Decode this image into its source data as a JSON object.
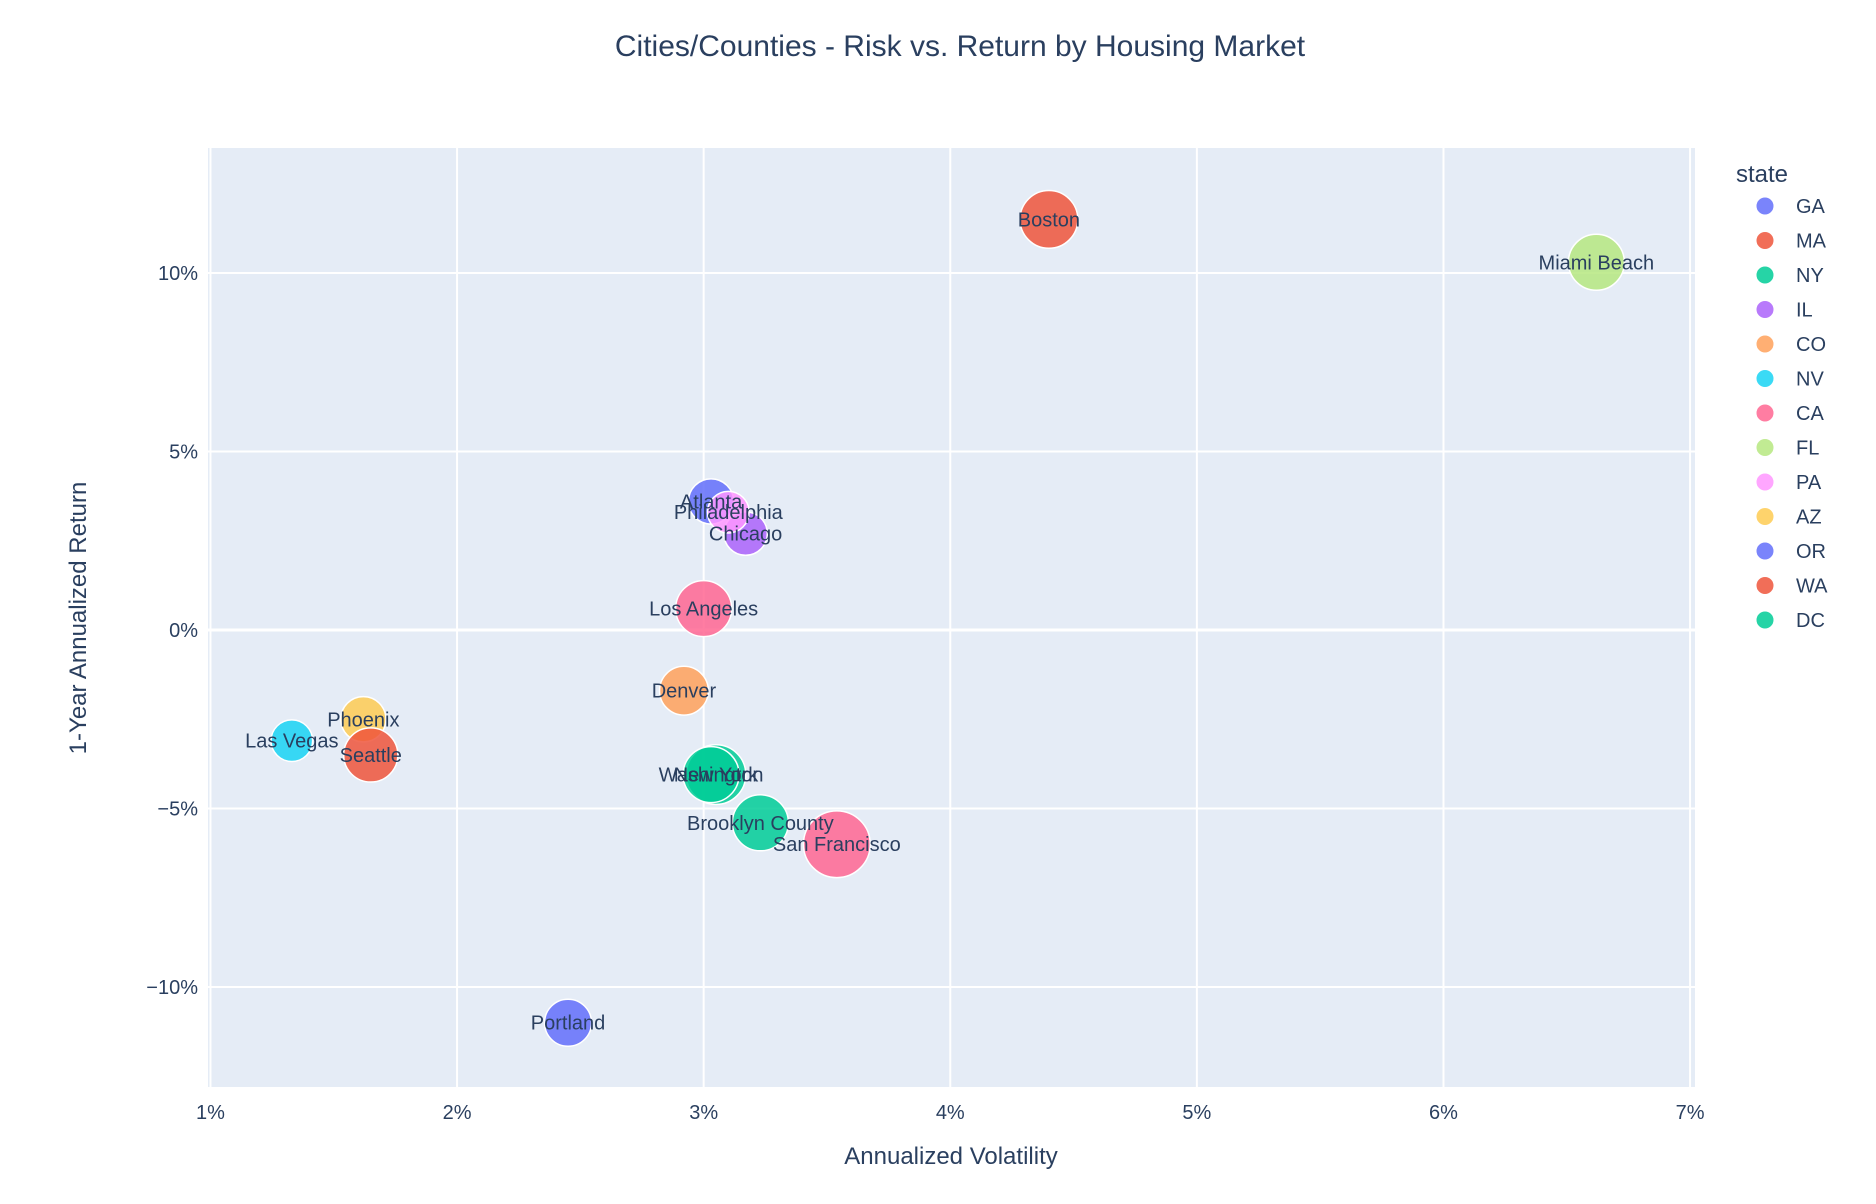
{
  "chart_data": {
    "type": "scatter",
    "title": "Cities/Counties - Risk vs. Return by Housing Market",
    "xlabel": "Annualized Volatility",
    "ylabel": "1-Year Annualized Return",
    "xlim": [
      0.99,
      7.02
    ],
    "ylim": [
      -12.8,
      13.5
    ],
    "x_ticks": [
      1,
      2,
      3,
      4,
      5,
      6,
      7
    ],
    "x_tick_labels": [
      "1%",
      "2%",
      "3%",
      "4%",
      "5%",
      "6%",
      "7%"
    ],
    "y_ticks": [
      -10,
      -5,
      0,
      5,
      10
    ],
    "y_tick_labels": [
      "−10%",
      "−5%",
      "0%",
      "5%",
      "10%"
    ],
    "grid": true,
    "legend_placement": "right",
    "legend_title": "state",
    "series": [
      {
        "name": "GA",
        "color": "#636efa",
        "points": [
          {
            "label": "Atlanta",
            "x": 3.03,
            "y": 3.6,
            "size": 0.7
          }
        ]
      },
      {
        "name": "MA",
        "color": "#ef553b",
        "points": [
          {
            "label": "Boston",
            "x": 4.4,
            "y": 11.5,
            "size": 1.05
          }
        ]
      },
      {
        "name": "NY",
        "color": "#00cc96",
        "points": [
          {
            "label": "New York",
            "x": 3.05,
            "y": -4.05,
            "size": 1.1
          },
          {
            "label": "Brooklyn County",
            "x": 3.23,
            "y": -5.4,
            "size": 1.0
          }
        ]
      },
      {
        "name": "IL",
        "color": "#ab63fa",
        "points": [
          {
            "label": "Chicago",
            "x": 3.17,
            "y": 2.7,
            "size": 0.65
          }
        ]
      },
      {
        "name": "CO",
        "color": "#ffa15a",
        "points": [
          {
            "label": "Denver",
            "x": 2.92,
            "y": -1.7,
            "size": 0.8
          }
        ]
      },
      {
        "name": "NV",
        "color": "#19d3f3",
        "points": [
          {
            "label": "Las Vegas",
            "x": 1.33,
            "y": -3.1,
            "size": 0.6
          }
        ]
      },
      {
        "name": "CA",
        "color": "#ff6692",
        "points": [
          {
            "label": "Los Angeles",
            "x": 3.0,
            "y": 0.6,
            "size": 1.0
          },
          {
            "label": "San Francisco",
            "x": 3.54,
            "y": -6.0,
            "size": 1.3
          }
        ]
      },
      {
        "name": "FL",
        "color": "#b6e880",
        "points": [
          {
            "label": "Miami Beach",
            "x": 6.62,
            "y": 10.3,
            "size": 1.0
          }
        ]
      },
      {
        "name": "PA",
        "color": "#ff97ff",
        "points": [
          {
            "label": "Philadelphia",
            "x": 3.1,
            "y": 3.3,
            "size": 0.6
          }
        ]
      },
      {
        "name": "AZ",
        "color": "#fecb52",
        "points": [
          {
            "label": "Phoenix",
            "x": 1.62,
            "y": -2.5,
            "size": 0.7
          }
        ]
      },
      {
        "name": "OR",
        "color": "#636efa",
        "points": [
          {
            "label": "Portland",
            "x": 2.45,
            "y": -11.0,
            "size": 0.75
          }
        ]
      },
      {
        "name": "WA",
        "color": "#ef553b",
        "points": [
          {
            "label": "Seattle",
            "x": 1.65,
            "y": -3.5,
            "size": 0.95
          }
        ]
      },
      {
        "name": "DC",
        "color": "#00cc96",
        "points": [
          {
            "label": "Washington",
            "x": 3.03,
            "y": -4.05,
            "size": 1.0
          }
        ]
      }
    ]
  }
}
